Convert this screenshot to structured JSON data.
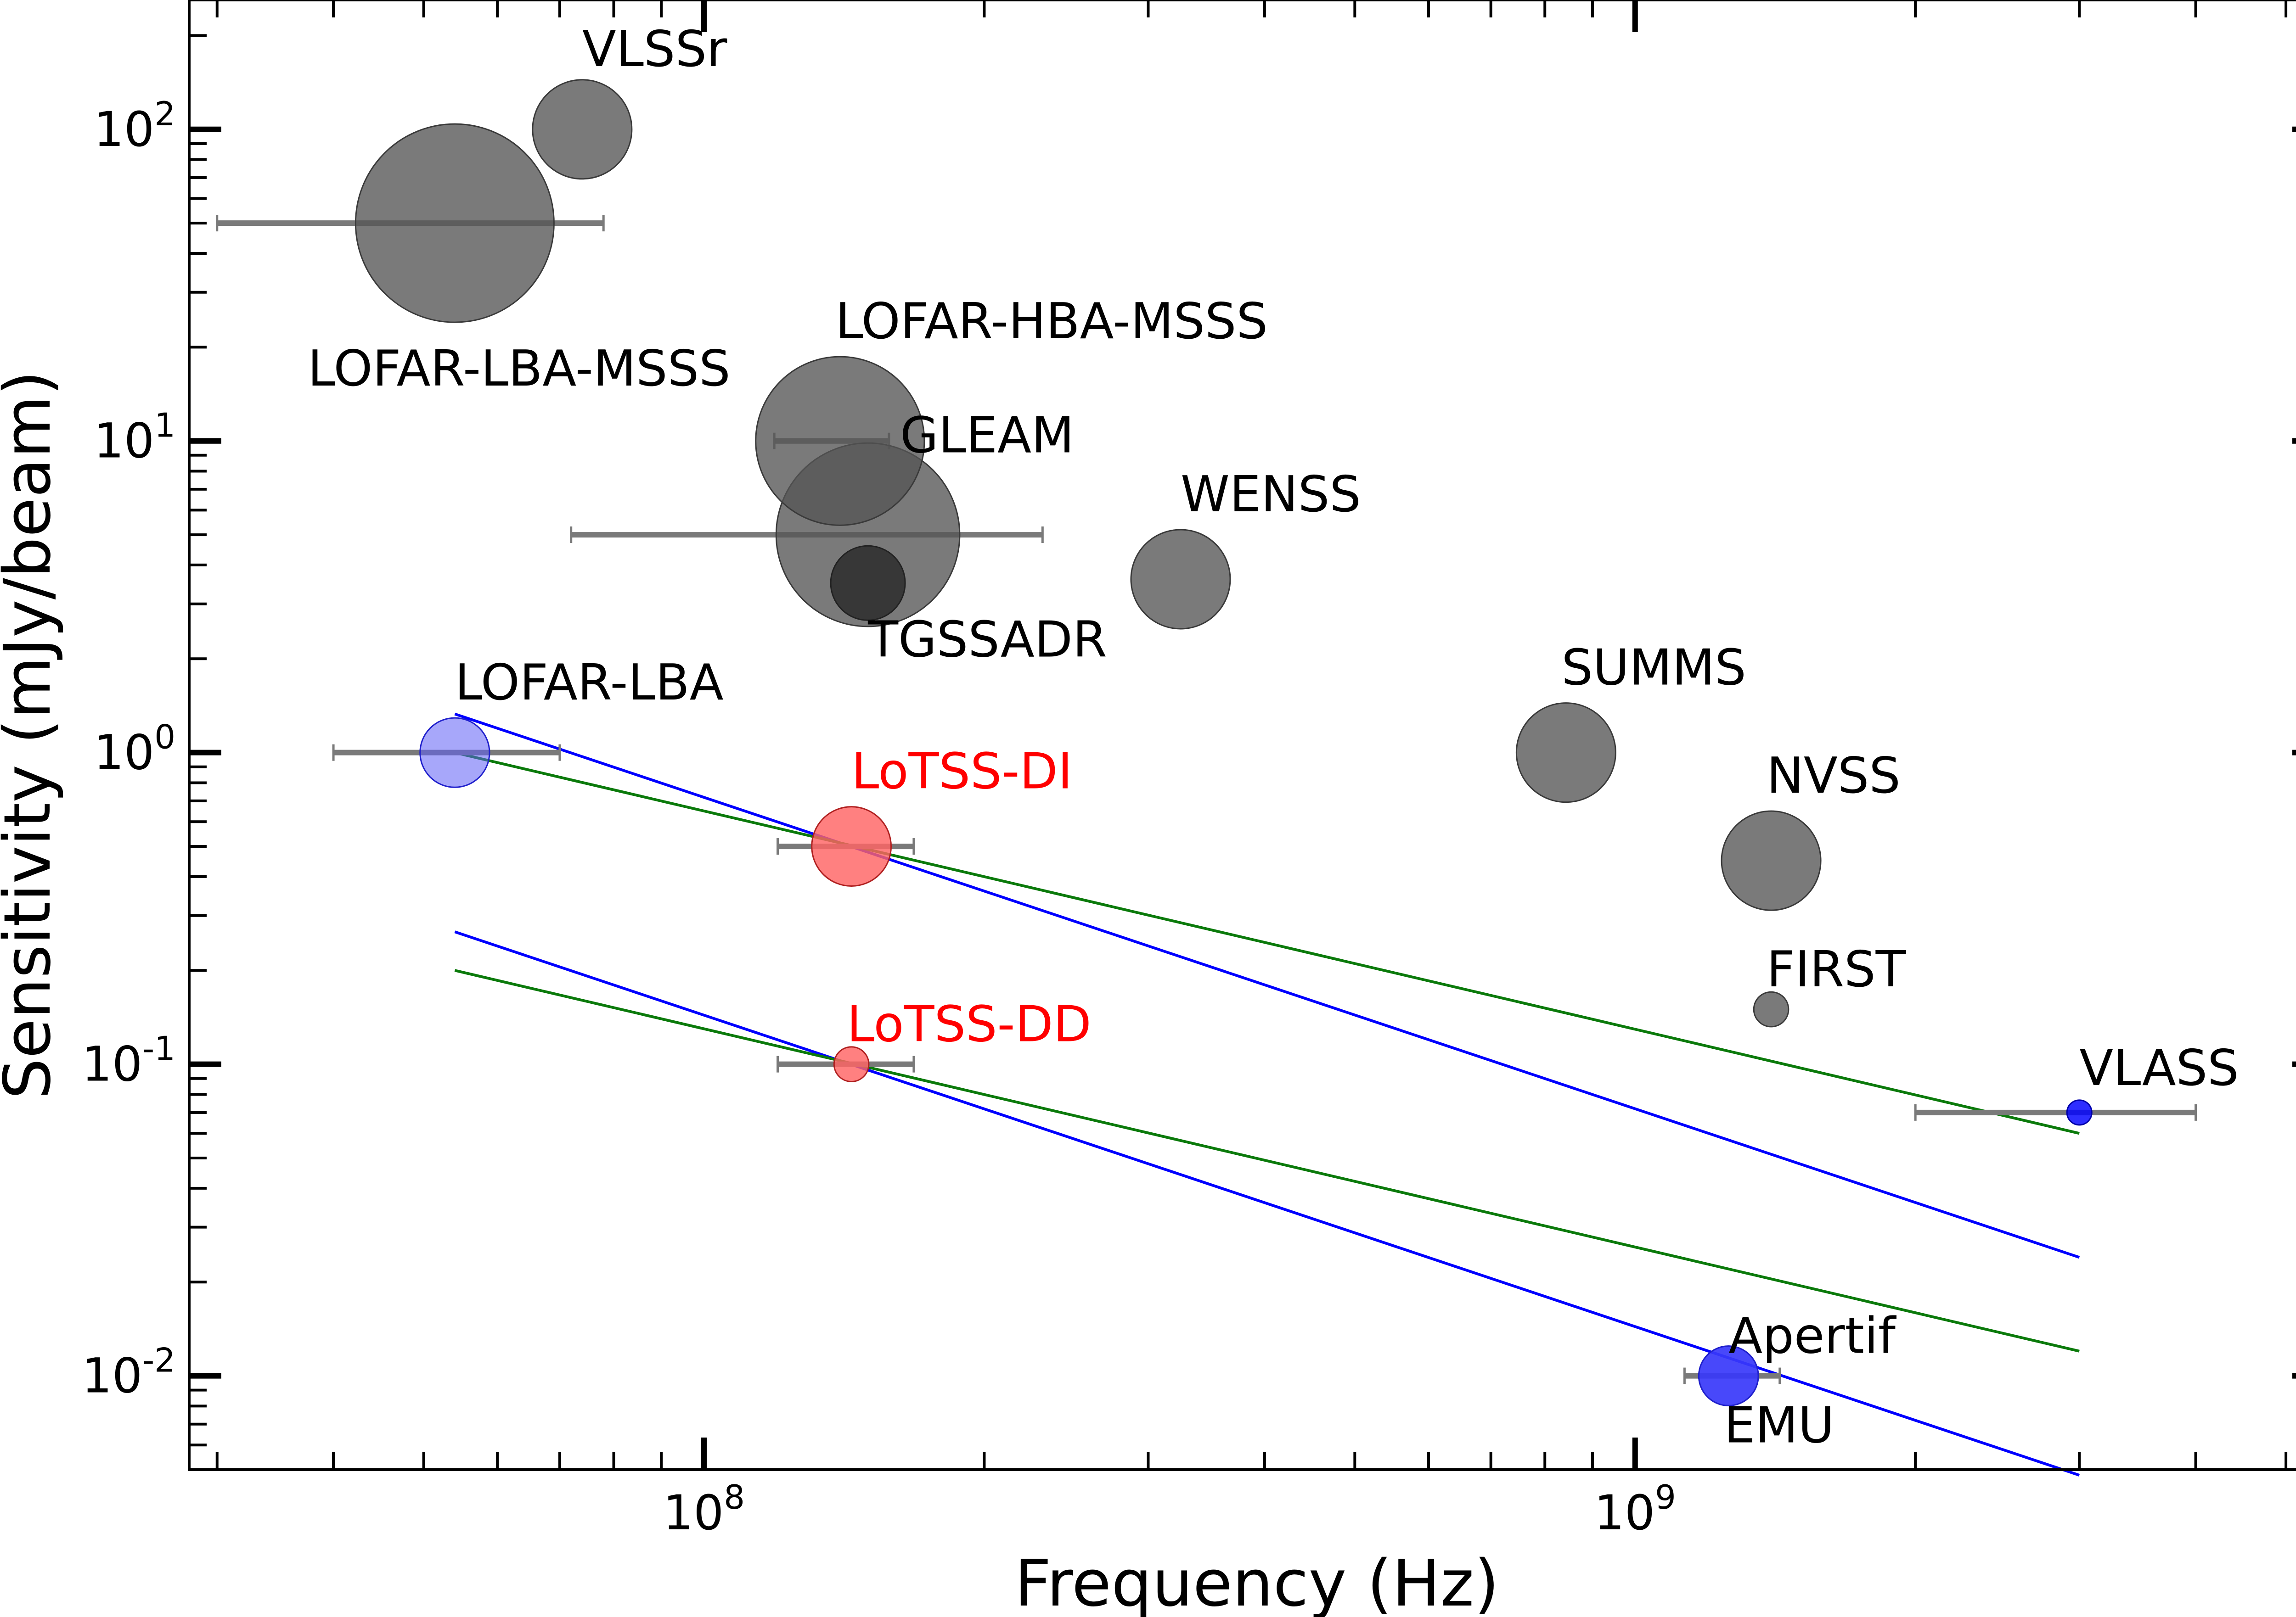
{
  "chart_data": {
    "type": "scatter",
    "xlabel": "Frequency (Hz)",
    "ylabel": "Sensitivity (mJy/beam)",
    "xscale": "log",
    "yscale": "log",
    "xlim": [
      28000000,
      5500000000
    ],
    "ylim": [
      0.005,
      260
    ],
    "grid": false,
    "xticks": [
      {
        "base": "10",
        "exp": "8",
        "value": 100000000
      },
      {
        "base": "10",
        "exp": "9",
        "value": 1000000000
      }
    ],
    "yticks": [
      {
        "base": "10",
        "exp": "2",
        "value": 100
      },
      {
        "base": "10",
        "exp": "1",
        "value": 10
      },
      {
        "base": "10",
        "exp": "0",
        "value": 1
      },
      {
        "base": "10",
        "exp": "-1",
        "value": 0.1
      },
      {
        "base": "10",
        "exp": "-2",
        "value": 0.01
      }
    ],
    "colors": {
      "gray": "#555555",
      "blue": "#0000ff",
      "light_blue": "#7070f5",
      "red": "#ff6f6f",
      "green": "#0b7a0b",
      "errorbar": "#7a7a7a",
      "label_red": "#ff0000"
    },
    "series": [
      {
        "name": "VLSSr",
        "x": 74000000,
        "y": 100,
        "size": 1,
        "color": "gray",
        "label_pos": "above",
        "label_color": "#000000"
      },
      {
        "name": "LOFAR-LBA-MSSS",
        "x": 54000000,
        "y": 50,
        "size": 2,
        "color": "gray",
        "xerr": [
          30000000,
          78000000
        ],
        "label_pos": "below",
        "label_color": "#000000"
      },
      {
        "name": "LOFAR-HBA-MSSS",
        "x": 140000000,
        "y": 10,
        "size": 1.7,
        "color": "gray",
        "xerr": [
          119000000,
          158000000
        ],
        "label_pos": "above",
        "label_color": "#000000"
      },
      {
        "name": "GLEAM",
        "x": 150000000,
        "y": 5,
        "size": 1.85,
        "color": "gray",
        "xerr": [
          72000000,
          231000000
        ],
        "label_pos": "above-right",
        "label_color": "#000000"
      },
      {
        "name": "TGSSADR",
        "x": 150000000,
        "y": 3.5,
        "size": 0.75,
        "color": "dark",
        "label_pos": "below",
        "label_color": "#000000"
      },
      {
        "name": "WENSS",
        "x": 325000000,
        "y": 3.6,
        "size": 1,
        "color": "gray",
        "label_pos": "above",
        "label_color": "#000000"
      },
      {
        "name": "SUMMS",
        "x": 843000000,
        "y": 1,
        "size": 1,
        "color": "gray",
        "label_pos": "above",
        "label_color": "#000000"
      },
      {
        "name": "NVSS",
        "x": 1400000000,
        "y": 0.45,
        "size": 1,
        "color": "gray",
        "label_pos": "above",
        "label_color": "#000000"
      },
      {
        "name": "FIRST",
        "x": 1400000000,
        "y": 0.15,
        "size": 0.35,
        "color": "gray",
        "label_pos": "above",
        "label_color": "#000000"
      },
      {
        "name": "VLASS",
        "x": 3000000000,
        "y": 0.07,
        "size": 0.25,
        "color": "blue",
        "xerr": [
          2000000000,
          4000000000
        ],
        "label_pos": "above",
        "label_color": "#000000"
      },
      {
        "name": "LOFAR-LBA",
        "x": 54000000,
        "y": 1,
        "size": 0.7,
        "color": "light_blue",
        "xerr": [
          40000000,
          70000000
        ],
        "label_pos": "above",
        "label_color": "#000000"
      },
      {
        "name": "LoTSS-DI",
        "x": 144000000,
        "y": 0.5,
        "size": 0.8,
        "color": "red",
        "xerr": [
          120000000,
          168000000
        ],
        "label_pos": "above",
        "label_color": "#ff0000"
      },
      {
        "name": "LoTSS-DD",
        "x": 144000000,
        "y": 0.1,
        "size": 0.35,
        "color": "red",
        "xerr": [
          120000000,
          168000000
        ],
        "label_pos": "above",
        "label_color": "#ff0000"
      },
      {
        "name": "Apertif",
        "x": 1260000000,
        "y": 0.01,
        "size": 0.6,
        "color": "blue",
        "xerr": [
          1130000000,
          1430000000
        ],
        "label_pos": "above",
        "label_color": "#000000"
      },
      {
        "name": "EMU",
        "x": 1260000000,
        "y": 0.01,
        "size": 0.6,
        "color": "light_blue",
        "label_pos": "below",
        "label_color": "#000000"
      }
    ],
    "lines": [
      {
        "name": "scaling-blue-upper",
        "color": "blue",
        "x": [
          54000000,
          3000000000
        ],
        "y": [
          1.33,
          0.024
        ]
      },
      {
        "name": "scaling-green-upper",
        "color": "green",
        "x": [
          54000000,
          3000000000
        ],
        "y": [
          1.0,
          0.06
        ]
      },
      {
        "name": "scaling-blue-lower",
        "color": "blue",
        "x": [
          54000000,
          3000000000
        ],
        "y": [
          0.266,
          0.0048
        ]
      },
      {
        "name": "scaling-green-lower",
        "color": "green",
        "x": [
          54000000,
          3000000000
        ],
        "y": [
          0.2,
          0.012
        ]
      }
    ]
  }
}
